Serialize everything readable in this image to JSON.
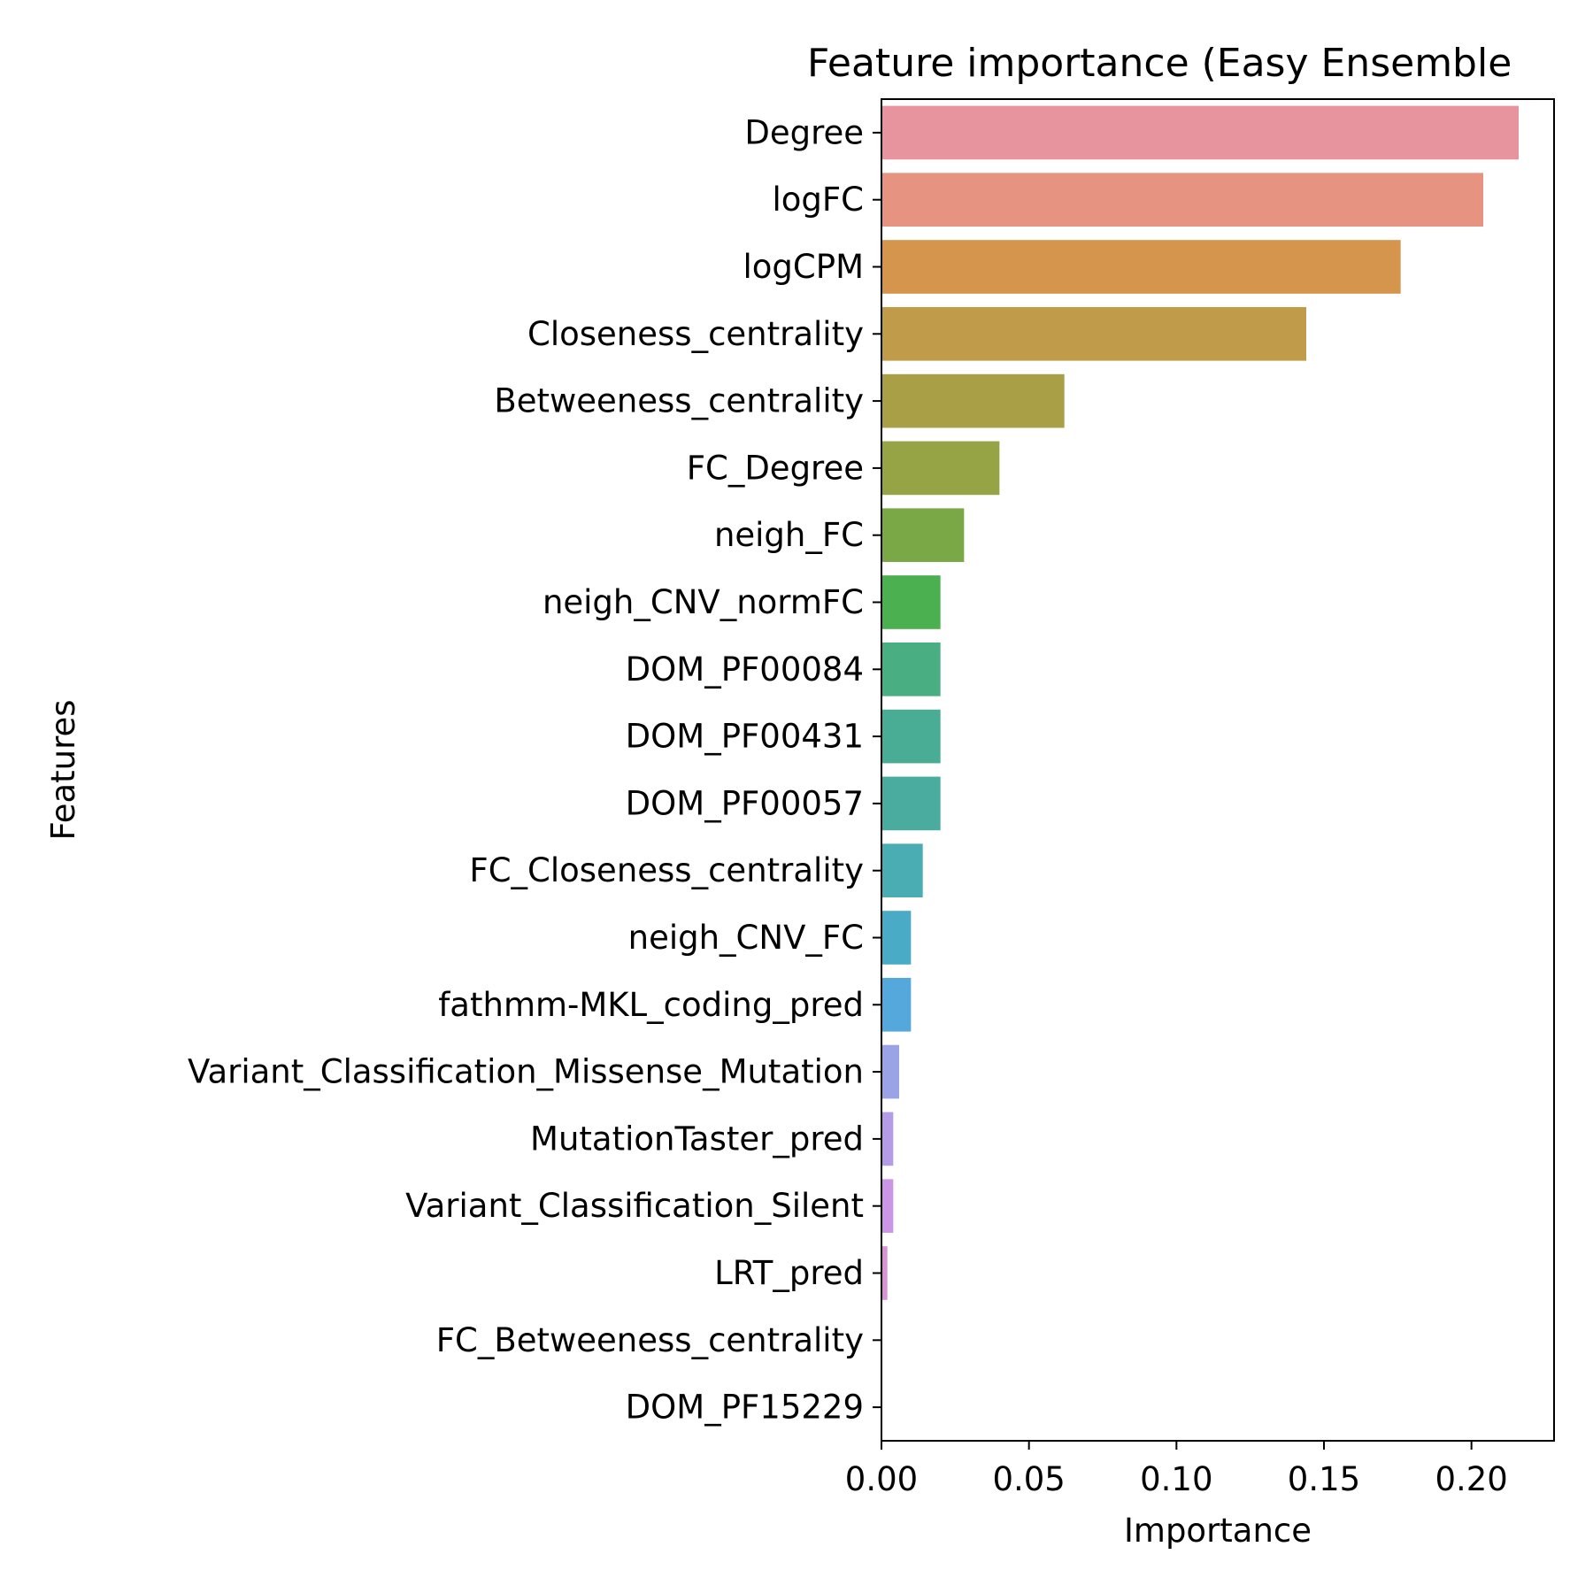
{
  "chart_data": {
    "type": "bar",
    "orientation": "horizontal",
    "title": "Feature importance (Easy Ensemble",
    "xlabel": "Importance",
    "ylabel": "Features",
    "xlim": [
      0,
      0.228
    ],
    "xticks": [
      0.0,
      0.05,
      0.1,
      0.15,
      0.2
    ],
    "xtick_labels": [
      "0.00",
      "0.05",
      "0.10",
      "0.15",
      "0.20"
    ],
    "grid": false,
    "categories": [
      "Degree",
      "logFC",
      "logCPM",
      "Closeness_centrality",
      "Betweeness_centrality",
      "FC_Degree",
      "neigh_FC",
      "neigh_CNV_normFC",
      "DOM_PF00084",
      "DOM_PF00431",
      "DOM_PF00057",
      "FC_Closeness_centrality",
      "neigh_CNV_FC",
      "fathmm-MKL_coding_pred",
      "Variant_Classification_Missense_Mutation",
      "MutationTaster_pred",
      "Variant_Classification_Silent",
      "LRT_pred",
      "FC_Betweeness_centrality",
      "DOM_PF15229"
    ],
    "values": [
      0.216,
      0.204,
      0.176,
      0.144,
      0.062,
      0.04,
      0.028,
      0.02,
      0.02,
      0.02,
      0.02,
      0.014,
      0.01,
      0.01,
      0.006,
      0.004,
      0.004,
      0.002,
      0.0,
      0.0
    ],
    "colors": [
      "#e8949f",
      "#e79382",
      "#d6954c",
      "#bf9b4a",
      "#a89f46",
      "#97a446",
      "#7ba847",
      "#4bb050",
      "#4aae83",
      "#49ad95",
      "#4aab9f",
      "#4aadb3",
      "#4aabc6",
      "#55a8dc",
      "#9aa3e6",
      "#b59ce6",
      "#cb96e6",
      "#d992d3",
      "#e291c0",
      "#e693ad"
    ]
  }
}
